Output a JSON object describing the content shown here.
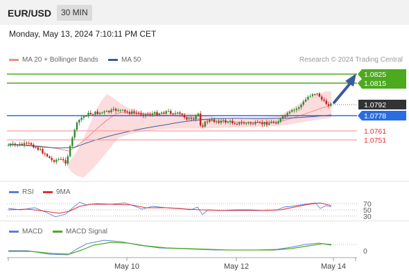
{
  "header": {
    "symbol": "EUR/USD",
    "timeframe": "30 MIN"
  },
  "timestamp": "Monday, May 13, 2024 7:10:11 PM CET",
  "legend": [
    {
      "label": "MA 20 + Bollinger Bands",
      "color": "#f28b8b"
    },
    {
      "label": "MA 50",
      "color": "#3a5aa0"
    }
  ],
  "credit": "Research © 2024 Trading Central",
  "levels": [
    {
      "value": "1.0825",
      "color": "#4caa1e",
      "type": "target"
    },
    {
      "value": "1.0815",
      "color": "#4caa1e",
      "type": "target"
    },
    {
      "value": "1.0792",
      "color": "#333333",
      "type": "last"
    },
    {
      "value": "1.0778",
      "color": "#2a6de0",
      "type": "pivot"
    },
    {
      "value": "1.0761",
      "color": "#e03030",
      "type": "support"
    },
    {
      "value": "1.0751",
      "color": "#e03030",
      "type": "support"
    }
  ],
  "rsi": {
    "legend": [
      {
        "label": "RSI",
        "color": "#5b7fd6"
      },
      {
        "label": "9MA",
        "color": "#e03030"
      }
    ],
    "ticks": [
      "70",
      "50",
      "30"
    ]
  },
  "macd": {
    "legend": [
      {
        "label": "MACD",
        "color": "#5b7fd6"
      },
      {
        "label": "MACD Signal",
        "color": "#4caa1e"
      }
    ],
    "ticks": [
      "0"
    ]
  },
  "xaxis": [
    "May 10",
    "May 12",
    "May 14"
  ],
  "colors": {
    "bull": "#2e8b2e",
    "bear": "#c02020",
    "band": "#fbd6d6"
  }
}
